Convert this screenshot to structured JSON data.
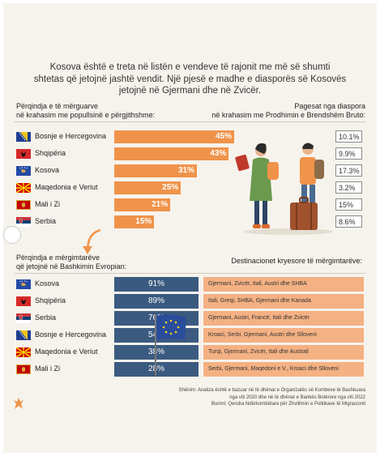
{
  "headline": {
    "line1": "Kosova është e treta në listën e vendeve të rajonit me më së shumti",
    "line2": "shtetas që jetojnë jashtë vendit. Një pjesë e madhe e diasporës së Kosovës",
    "line3": "jetojnë në Gjermani dhe në Zvicër."
  },
  "left_title": {
    "line1": "Përqindja e të mërguarve",
    "line2": "në krahasim me popullsinë e përgjithshme:"
  },
  "right_title": {
    "line1": "Pagesat nga diaspora",
    "line2": "në krahasim me Prodhimin e Brendshëm Bruto:"
  },
  "eu_title": {
    "line1": "Përqindja e mërgimtarëve",
    "line2": "që jetojnë në Bashkimin Evropian:"
  },
  "dest_title": "Destinacionet kryesore të mërgimtarëve:",
  "chart_data": [
    {
      "type": "bar",
      "categories": [
        "Bosnje e Hercegovina",
        "Shqipëria",
        "Kosova",
        "Maqedonia e Veriut",
        "Mali i Zi",
        "Serbia"
      ],
      "series": [
        {
          "name": "Përqindja e të mërguarve në krahasim me popullsinë e përgjithshme",
          "values": [
            45,
            43,
            31,
            25,
            21,
            15
          ],
          "labels": [
            "45%",
            "43%",
            "31%",
            "25%",
            "21%",
            "15%"
          ]
        },
        {
          "name": "Pagesat nga diaspora në krahasim me Prodhimin e Brendshëm Bruto",
          "values": [
            10.1,
            9.9,
            17.3,
            3.2,
            15,
            8.6
          ],
          "labels": [
            "10.1%",
            "9.9%",
            "17.3%",
            "3.2%",
            "15%",
            "8.6%"
          ]
        }
      ],
      "xlim": [
        0,
        50
      ],
      "colors": {
        "bar": "#f0934a"
      }
    },
    {
      "type": "table",
      "columns": [
        "Përqindja e mërgimtarëve që jetojnë në Bashkimin Evropian",
        "Destinacionet kryesore të mërgimtarëve"
      ],
      "rows": [
        {
          "country": "Kosova",
          "eu": "91%",
          "dest": "Gjermani, Zvicër, Itali, Austri dhe SHBA"
        },
        {
          "country": "Shqipëria",
          "eu": "89%",
          "dest": "Itali, Greqi, SHBA, Gjermani dhe Kanada"
        },
        {
          "country": "Serbia",
          "eu": "76%",
          "dest": "Gjermani, Austri, Francë, Itali dhe Zvicër"
        },
        {
          "country": "Bosnje e Hercegovina",
          "eu": "54%",
          "dest": "Kroaci, Serbi, Gjermani, Austri dhe Slloveni"
        },
        {
          "country": "Maqedonia e Veriut",
          "eu": "38%",
          "dest": "Turqi, Gjermani, Zvicër, Itali dhe Australi"
        },
        {
          "country": "Mali i Zi",
          "eu": "28%",
          "dest": "Serbi, Gjermani, Maqedoni e V., Kroaci dhe Slloveni"
        }
      ],
      "colors": {
        "eu_cell": "#3b5a80",
        "dest_cell": "#f4b183"
      }
    }
  ],
  "note": {
    "line1": "Shënim: Analiza është e bazuar në të dhënat e Organizatës së Kombeve të Bashkuara",
    "line2": "nga viti 2020 dhe në të dhënat e Bankës Botërore nga viti 2022",
    "line3": "Burimi: Qendra Ndërkombëtare për Zhvillimin e Politikave të Migracionit"
  }
}
